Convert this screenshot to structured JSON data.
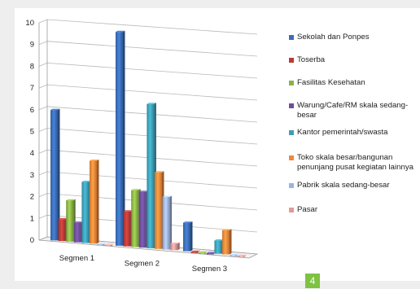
{
  "chart_data": {
    "type": "bar",
    "categories": [
      "Segmen 1",
      "Segmen 2",
      "Segmen 3"
    ],
    "series": [
      {
        "name": "Sekolah dan Ponpes",
        "color": "#3b6db7",
        "values": [
          6,
          9.8,
          1.3
        ]
      },
      {
        "name": "Toserba",
        "color": "#b73b37",
        "values": [
          1,
          1.6,
          0
        ]
      },
      {
        "name": "Fasilitas Kesehatan",
        "color": "#8ab345",
        "values": [
          1.9,
          2.6,
          0
        ]
      },
      {
        "name": "Warung/Cafe/RM skala sedang-besar",
        "color": "#6d4f9a",
        "values": [
          0.9,
          2.55,
          0
        ]
      },
      {
        "name": "Kantor pemerintah/swasta",
        "color": "#3c9fb6",
        "values": [
          2.8,
          6.6,
          0.6
        ]
      },
      {
        "name": "Toko skala besar/bangunan penunjang pusat kegiatan lainnya",
        "color": "#f0883a",
        "values": [
          3.8,
          3.5,
          1.1
        ]
      },
      {
        "name": "Pabrik skala sedang-besar",
        "color": "#9db3df",
        "values": [
          0,
          2.4,
          0
        ]
      },
      {
        "name": "Pasar",
        "color": "#e09a99",
        "values": [
          0,
          0.3,
          0
        ]
      }
    ],
    "yticks": [
      "0",
      "1",
      "2",
      "3",
      "4",
      "5",
      "6",
      "7",
      "8",
      "9",
      "10"
    ],
    "ylim": [
      0,
      10
    ],
    "grid": true,
    "legend_position": "right"
  },
  "page_badge": "4"
}
